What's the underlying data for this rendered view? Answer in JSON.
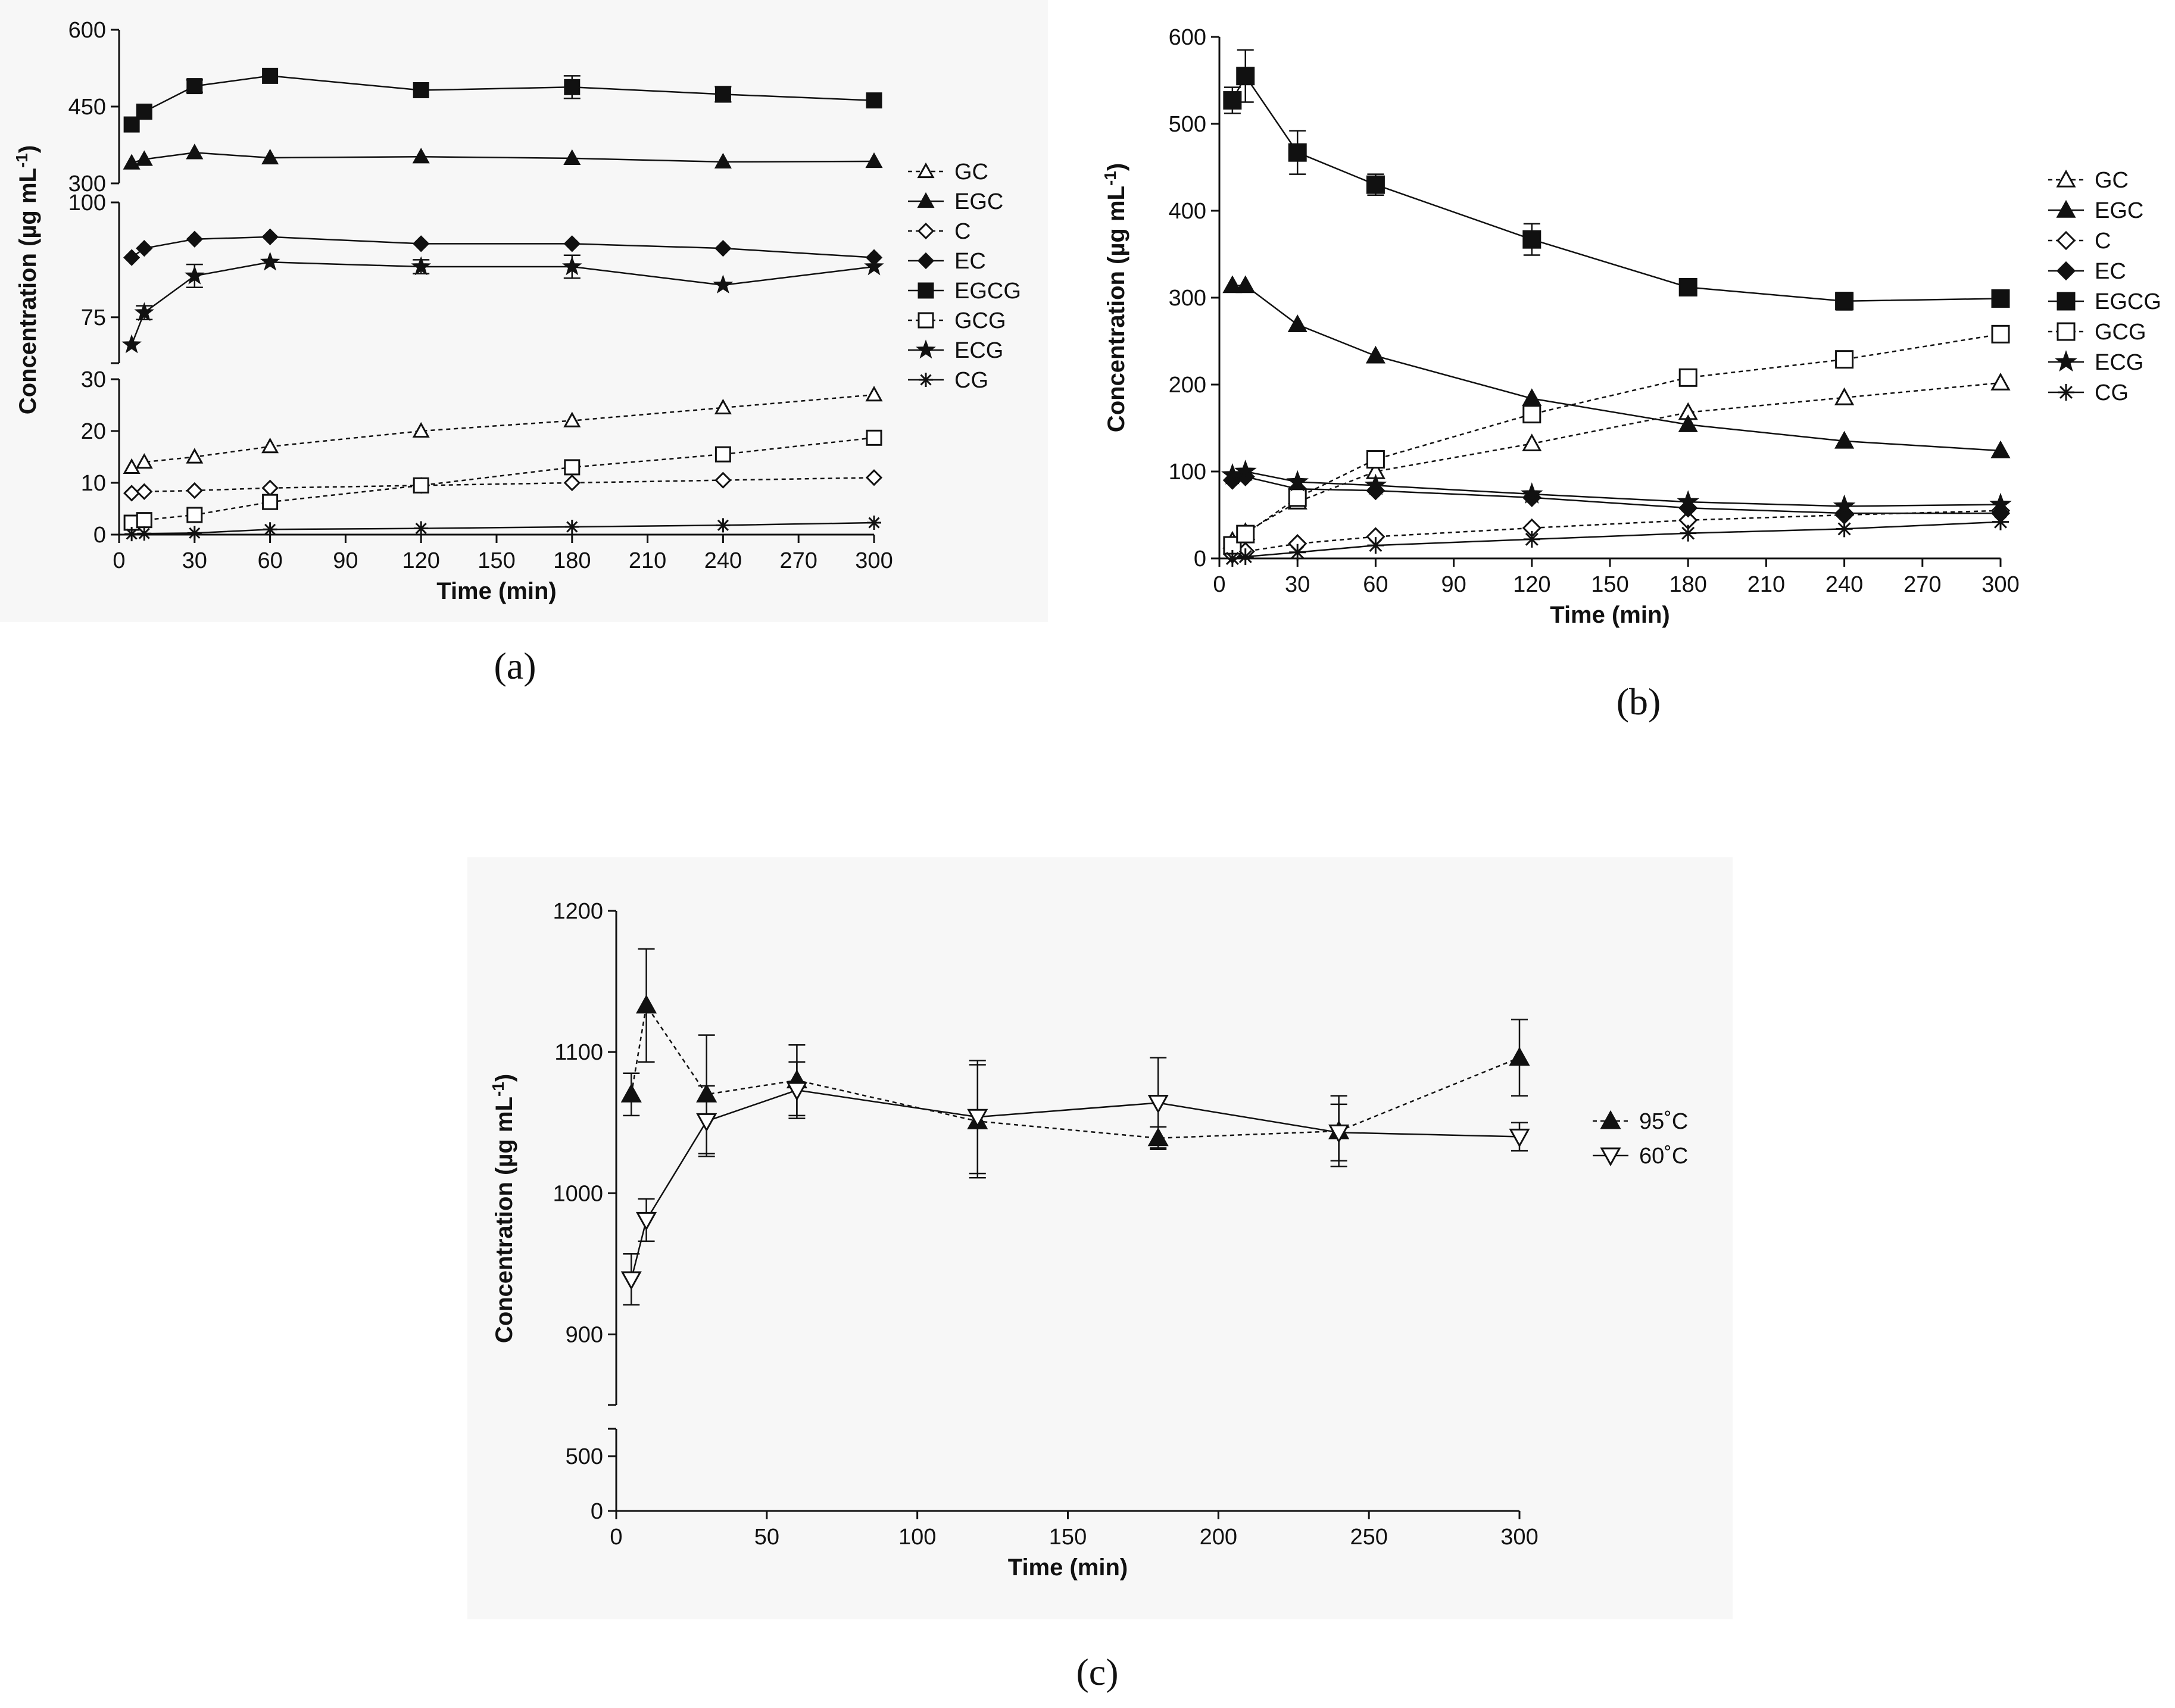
{
  "colors": {
    "ink": "#111111",
    "panel_bg": "#f7f7f7",
    "white": "#ffffff"
  },
  "chart_data": [
    {
      "type": "line",
      "caption": "(a)",
      "xlabel": "Time (min)",
      "ylabel": "Concentration (µg mL",
      "ylabel_sup": "-1",
      "x_ticks": [
        "0",
        "30",
        "60",
        "90",
        "120",
        "150",
        "180",
        "210",
        "240",
        "270",
        "300"
      ],
      "xlim": [
        0,
        300
      ],
      "y_segments": [
        {
          "range": [
            300,
            600
          ],
          "ticks": [
            "300",
            "450",
            "600"
          ]
        },
        {
          "range": [
            65,
            100
          ],
          "ticks": [
            "75",
            "100"
          ]
        },
        {
          "range": [
            0,
            30
          ],
          "ticks": [
            "0",
            "10",
            "20",
            "30"
          ]
        }
      ],
      "x": [
        5,
        10,
        30,
        60,
        120,
        180,
        240,
        300
      ],
      "series": [
        {
          "name": "GC",
          "marker": "triangle-open",
          "dash": true,
          "values": [
            13,
            14,
            15,
            17,
            20,
            22,
            24.5,
            27
          ]
        },
        {
          "name": "EGC",
          "marker": "triangle-filled",
          "dash": false,
          "values": [
            340,
            347,
            360,
            350,
            352,
            349,
            342,
            343
          ]
        },
        {
          "name": "C",
          "marker": "diamond-open",
          "dash": true,
          "values": [
            8,
            8.3,
            8.5,
            9,
            9.5,
            10,
            10.5,
            11
          ]
        },
        {
          "name": "EC",
          "marker": "diamond-filled",
          "dash": false,
          "values": [
            88,
            90,
            92,
            92.5,
            91,
            91,
            90,
            88
          ]
        },
        {
          "name": "EGCG",
          "marker": "square-filled",
          "dash": false,
          "values": [
            415,
            440,
            490,
            510,
            482,
            488,
            474,
            462
          ],
          "errors": [
            0,
            0,
            12,
            0,
            0,
            22,
            15,
            0
          ]
        },
        {
          "name": "GCG",
          "marker": "square-open",
          "dash": true,
          "values": [
            2.3,
            2.8,
            3.8,
            6.3,
            9.5,
            13,
            15.5,
            18.7
          ]
        },
        {
          "name": "ECG",
          "marker": "star",
          "dash": false,
          "values": [
            69,
            76,
            84,
            87,
            86,
            86,
            82,
            86
          ],
          "errors": [
            0,
            1.5,
            2.5,
            0,
            1.5,
            2.5,
            0,
            0
          ]
        },
        {
          "name": "CG",
          "marker": "asterisk",
          "dash": false,
          "values": [
            0.1,
            0.2,
            0.3,
            1,
            1.2,
            1.5,
            1.8,
            2.3
          ]
        }
      ]
    },
    {
      "type": "line",
      "caption": "(b)",
      "xlabel": "Time (min)",
      "ylabel": "Concentration (µg mL",
      "ylabel_sup": "-1",
      "x_ticks": [
        "0",
        "30",
        "60",
        "90",
        "120",
        "150",
        "180",
        "210",
        "240",
        "270",
        "300"
      ],
      "xlim": [
        0,
        300
      ],
      "y_ticks": [
        "0",
        "100",
        "200",
        "300",
        "400",
        "500",
        "600"
      ],
      "ylim": [
        0,
        600
      ],
      "x": [
        5,
        10,
        30,
        60,
        120,
        180,
        240,
        300
      ],
      "series": [
        {
          "name": "GC",
          "marker": "triangle-open",
          "dash": true,
          "values": [
            20,
            30,
            65,
            100,
            132,
            168,
            185,
            202
          ]
        },
        {
          "name": "EGC",
          "marker": "triangle-filled",
          "dash": false,
          "values": [
            314,
            314,
            269,
            233,
            184,
            154,
            135,
            124
          ]
        },
        {
          "name": "C",
          "marker": "diamond-open",
          "dash": true,
          "values": [
            5,
            8,
            17,
            25,
            35,
            44,
            50,
            55
          ]
        },
        {
          "name": "EC",
          "marker": "diamond-filled",
          "dash": false,
          "values": [
            90,
            94,
            80,
            78,
            70,
            58,
            52,
            52
          ]
        },
        {
          "name": "EGCG",
          "marker": "square-filled",
          "dash": false,
          "values": [
            527,
            555,
            467,
            430,
            367,
            312,
            296,
            299
          ],
          "errors": [
            15,
            30,
            25,
            12,
            18,
            0,
            10,
            0
          ]
        },
        {
          "name": "GCG",
          "marker": "square-open",
          "dash": true,
          "values": [
            15,
            28,
            70,
            114,
            166,
            208,
            229,
            258
          ]
        },
        {
          "name": "ECG",
          "marker": "star",
          "dash": false,
          "values": [
            96,
            100,
            88,
            84,
            74,
            65,
            60,
            62
          ]
        },
        {
          "name": "CG",
          "marker": "asterisk",
          "dash": false,
          "values": [
            0,
            2,
            7,
            15,
            22,
            29,
            34,
            42
          ]
        }
      ]
    },
    {
      "type": "line",
      "caption": "(c)",
      "xlabel": "Time (min)",
      "ylabel": "Concentration (µg mL",
      "ylabel_sup": "-1",
      "x_ticks": [
        "0",
        "50",
        "100",
        "150",
        "200",
        "250",
        "300"
      ],
      "xlim": [
        0,
        300
      ],
      "y_segments": [
        {
          "range": [
            0,
            750
          ],
          "ticks": [
            "0",
            "500"
          ]
        },
        {
          "range": [
            850,
            1200
          ],
          "ticks": [
            "900",
            "1000",
            "1100",
            "1200"
          ]
        }
      ],
      "x": [
        5,
        10,
        30,
        60,
        120,
        180,
        240,
        300
      ],
      "series": [
        {
          "name": "95˚C",
          "marker": "triangle-filled",
          "dash": true,
          "values": [
            1070,
            1133,
            1070,
            1080,
            1051,
            1039,
            1044,
            1096
          ],
          "errors": [
            15,
            40,
            42,
            25,
            40,
            8,
            25,
            27
          ]
        },
        {
          "name": "60˚C",
          "marker": "triangle-down-open",
          "dash": false,
          "values": [
            939,
            981,
            1051,
            1073,
            1054,
            1064,
            1043,
            1040
          ],
          "errors": [
            18,
            15,
            25,
            20,
            40,
            32,
            20,
            10
          ]
        }
      ]
    }
  ]
}
